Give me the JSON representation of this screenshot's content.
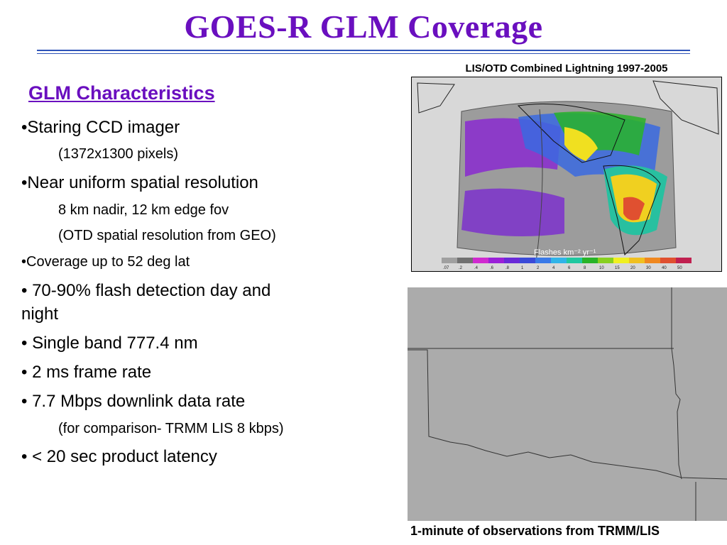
{
  "title": "GOES-R GLM Coverage",
  "map": {
    "caption": "LIS/OTD Combined Lightning 1997-2005",
    "colorbar_label": "Flashes km⁻² yr⁻¹",
    "colorbar_ticks": [
      ".07",
      ".2",
      ".4",
      ".6",
      ".8",
      "1",
      "2",
      "4",
      "6",
      "8",
      "10",
      "15",
      "20",
      "30",
      "40",
      "50"
    ],
    "colorbar_colors": [
      "#a0a0a0",
      "#707070",
      "#d02ad0",
      "#9a20d8",
      "#6a2ad8",
      "#3a4ad8",
      "#3a7ae8",
      "#30b4e8",
      "#20c8a0",
      "#28b428",
      "#88d020",
      "#f0f020",
      "#f0c020",
      "#f08820",
      "#e05030",
      "#c02050"
    ]
  },
  "bottom_caption": "1-minute of observations from TRMM/LIS",
  "characteristics": {
    "heading": "GLM Characteristics",
    "items": [
      "•Staring CCD imager",
      "(1372x1300 pixels)",
      "•Near uniform spatial resolution",
      "8 km nadir, 12 km edge fov",
      "(OTD spatial resolution from GEO)",
      "•Coverage up to 52 deg lat",
      "• 70-90% flash detection day and",
      "night",
      "• Single band 777.4 nm",
      "• 2 ms frame rate",
      "• 7.7 Mbps downlink data rate",
      "(for comparison- TRMM LIS 8 kbps)",
      "• < 20 sec product latency"
    ]
  }
}
